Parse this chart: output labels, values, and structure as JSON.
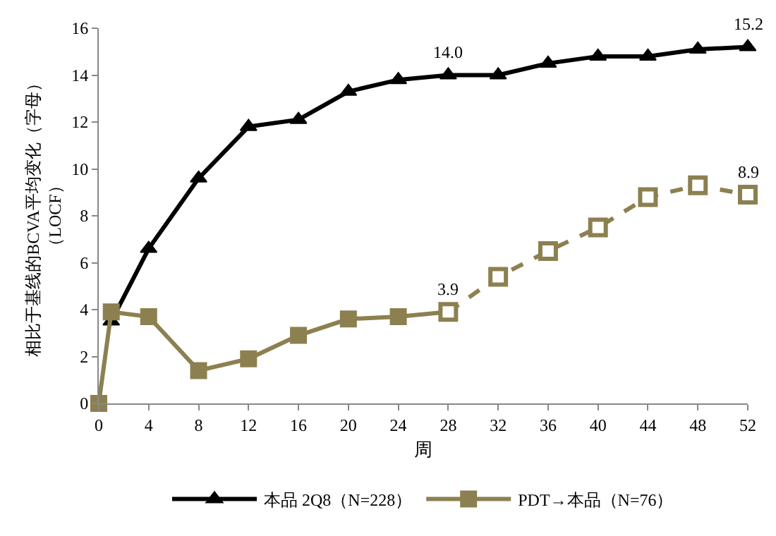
{
  "chart_data": {
    "type": "line",
    "xlabel": "周",
    "ylabel": "相比于基线的BCVA平均变化（字母）（LOCF）",
    "xlim": [
      0,
      52
    ],
    "xticks": [
      0,
      4,
      8,
      12,
      16,
      20,
      24,
      28,
      32,
      36,
      40,
      44,
      48,
      52
    ],
    "ylim": [
      0,
      16
    ],
    "yticks": [
      0,
      2,
      4,
      6,
      8,
      10,
      12,
      14,
      16
    ],
    "legend": "bottom",
    "series": [
      {
        "name": "本品 2Q8（N=228）",
        "color": "#000000",
        "marker": "triangle",
        "line_style": "solid",
        "x": [
          1,
          4,
          8,
          12,
          16,
          20,
          24,
          28,
          32,
          36,
          40,
          44,
          48,
          52
        ],
        "values": [
          3.5,
          6.6,
          9.6,
          11.8,
          12.1,
          13.3,
          13.8,
          14.0,
          14.0,
          14.5,
          14.8,
          14.8,
          15.1,
          15.2
        ],
        "value_labels": [
          null,
          null,
          null,
          null,
          null,
          null,
          null,
          "14.0",
          null,
          null,
          null,
          null,
          null,
          "15.2"
        ]
      },
      {
        "name": "PDT→本品（N=76）",
        "color": "#8c8050",
        "marker": "square",
        "line_style": "solid",
        "x": [
          0,
          1,
          4,
          8,
          12,
          16,
          20,
          24,
          28
        ],
        "values": [
          0,
          3.9,
          3.7,
          1.4,
          1.9,
          2.9,
          3.6,
          3.7,
          3.9
        ],
        "value_labels": [
          null,
          null,
          null,
          null,
          null,
          null,
          null,
          null,
          "3.9"
        ]
      },
      {
        "color": "#8c8050",
        "marker": "square",
        "line_style": "dashed",
        "x": [
          28,
          32,
          36,
          40,
          44,
          48,
          52
        ],
        "values": [
          3.9,
          5.4,
          6.5,
          7.5,
          8.8,
          9.3,
          8.9
        ],
        "value_labels": [
          null,
          null,
          null,
          null,
          null,
          null,
          "8.9"
        ]
      }
    ]
  }
}
